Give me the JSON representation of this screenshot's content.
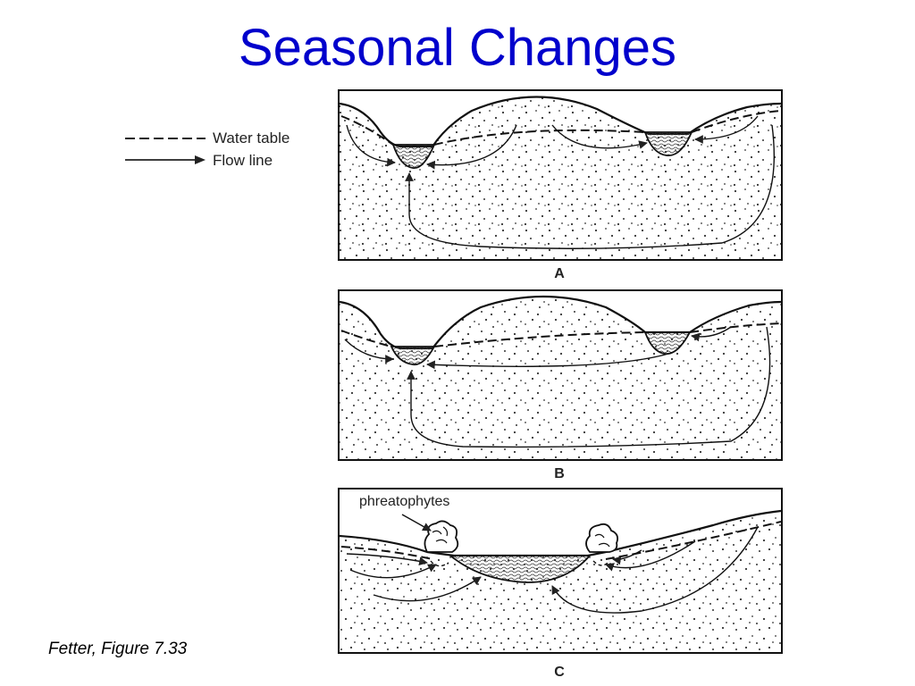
{
  "slide": {
    "title": "Seasonal Changes",
    "citation": "Fetter, Figure 7.33",
    "title_color": "#0000cc"
  },
  "legend": {
    "water_table_label": "Water table",
    "flow_line_label": "Flow line"
  },
  "panels": [
    {
      "letter": "A"
    },
    {
      "letter": "B"
    },
    {
      "letter": "C",
      "annotation": "phreatophytes"
    }
  ]
}
